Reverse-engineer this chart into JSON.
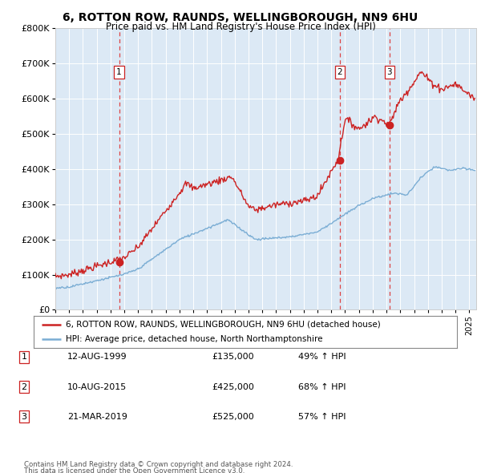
{
  "title": "6, ROTTON ROW, RAUNDS, WELLINGBOROUGH, NN9 6HU",
  "subtitle": "Price paid vs. HM Land Registry's House Price Index (HPI)",
  "plot_bg_color": "#dce9f5",
  "red_line_label": "6, ROTTON ROW, RAUNDS, WELLINGBOROUGH, NN9 6HU (detached house)",
  "blue_line_label": "HPI: Average price, detached house, North Northamptonshire",
  "transactions": [
    {
      "num": 1,
      "date": "12-AUG-1999",
      "price": "£135,000",
      "pct": "49% ↑ HPI",
      "x_year": 1999.62,
      "y_val": 135000
    },
    {
      "num": 2,
      "date": "10-AUG-2015",
      "price": "£425,000",
      "pct": "68% ↑ HPI",
      "x_year": 2015.62,
      "y_val": 425000
    },
    {
      "num": 3,
      "date": "21-MAR-2019",
      "price": "£525,000",
      "pct": "57% ↑ HPI",
      "x_year": 2019.22,
      "y_val": 525000
    }
  ],
  "footer_line1": "Contains HM Land Registry data © Crown copyright and database right 2024.",
  "footer_line2": "This data is licensed under the Open Government Licence v3.0.",
  "ylim": [
    0,
    800000
  ],
  "xlim_start": 1995.0,
  "xlim_end": 2025.5,
  "yticks": [
    0,
    100000,
    200000,
    300000,
    400000,
    500000,
    600000,
    700000,
    800000
  ],
  "ylabels": [
    "£0",
    "£100K",
    "£200K",
    "£300K",
    "£400K",
    "£500K",
    "£600K",
    "£700K",
    "£800K"
  ],
  "red_color": "#cc2222",
  "blue_color": "#7aadd4",
  "dashed_color": "#dd4444",
  "box_color": "#cc2222"
}
